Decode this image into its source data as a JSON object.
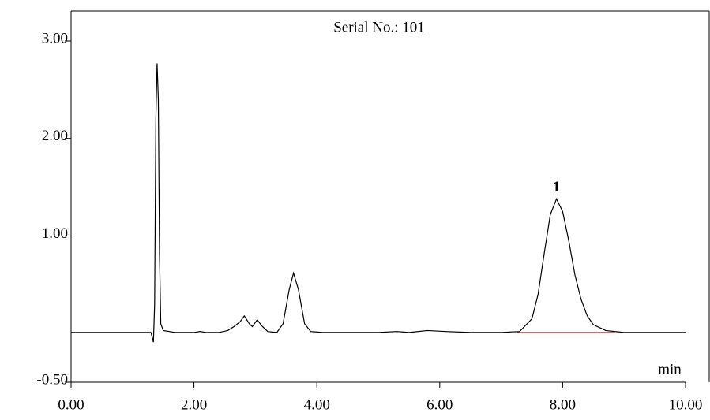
{
  "chart_data": {
    "type": "line",
    "title": "Serial No.: 101",
    "xlabel": "min",
    "x": [
      0.0,
      0.5,
      1.0,
      1.3,
      1.34,
      1.36,
      1.38,
      1.4,
      1.42,
      1.44,
      1.46,
      1.5,
      1.7,
      2.0,
      2.1,
      2.2,
      2.4,
      2.55,
      2.65,
      2.75,
      2.82,
      2.9,
      2.95,
      3.03,
      3.1,
      3.2,
      3.35,
      3.45,
      3.55,
      3.62,
      3.7,
      3.8,
      3.9,
      4.1,
      5.0,
      5.3,
      5.5,
      5.8,
      6.1,
      6.5,
      7.0,
      7.3,
      7.5,
      7.6,
      7.7,
      7.8,
      7.9,
      8.0,
      8.1,
      8.2,
      8.3,
      8.4,
      8.5,
      8.7,
      9.0,
      9.5,
      10.0
    ],
    "series": [
      {
        "color": "#000000",
        "values": [
          0.01,
          0.01,
          0.01,
          0.01,
          -0.09,
          0.3,
          2.2,
          2.77,
          2.4,
          0.8,
          0.1,
          0.03,
          0.01,
          0.01,
          0.02,
          0.01,
          0.01,
          0.03,
          0.07,
          0.12,
          0.18,
          0.1,
          0.07,
          0.14,
          0.08,
          0.02,
          0.01,
          0.1,
          0.45,
          0.62,
          0.45,
          0.1,
          0.02,
          0.01,
          0.01,
          0.02,
          0.01,
          0.03,
          0.02,
          0.01,
          0.01,
          0.02,
          0.15,
          0.4,
          0.82,
          1.22,
          1.38,
          1.25,
          0.95,
          0.6,
          0.35,
          0.18,
          0.09,
          0.03,
          0.01,
          0.01,
          0.01
        ]
      }
    ],
    "integration_baseline": {
      "color": "#e00000",
      "x": [
        7.25,
        8.85
      ],
      "values": [
        0.01,
        0.01
      ]
    },
    "annotations": [
      {
        "text": "1",
        "x": 7.9,
        "y": 1.38
      }
    ],
    "xlim": [
      0,
      10
    ],
    "ylim": [
      -0.5,
      3
    ],
    "xticks": [
      {
        "value": 0,
        "label": "0.00"
      },
      {
        "value": 2,
        "label": "2.00"
      },
      {
        "value": 4,
        "label": "4.00"
      },
      {
        "value": 6,
        "label": "6.00"
      },
      {
        "value": 8,
        "label": "8.00"
      },
      {
        "value": 10,
        "label": "10.00"
      }
    ],
    "yticks": [
      {
        "value": -0.5,
        "label": "-0.50"
      },
      {
        "value": 1,
        "label": "1.00"
      },
      {
        "value": 2,
        "label": "2.00"
      },
      {
        "value": 3,
        "label": "3.00"
      }
    ]
  }
}
